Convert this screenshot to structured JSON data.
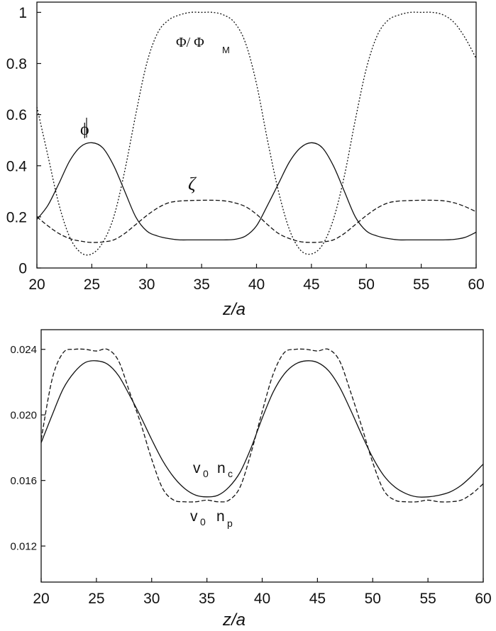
{
  "chart_data": [
    {
      "type": "line",
      "title": "",
      "xlabel": "z/a",
      "ylabel": "",
      "xlim": [
        20,
        60
      ],
      "ylim": [
        0,
        1.04
      ],
      "x_ticks": [
        "20",
        "25",
        "30",
        "35",
        "40",
        "45",
        "50",
        "55",
        "60"
      ],
      "y_ticks": [
        "0",
        "0.2",
        "0.4",
        "0.6",
        "0.8",
        "1"
      ],
      "grid": false,
      "annotations": {
        "phi": "ϕ",
        "zeta": "ζ",
        "Phi_main": "Φ/ Φ",
        "Phi_sub": "M"
      },
      "series": [
        {
          "name": "ϕ",
          "style": "solid",
          "x": [
            20,
            21,
            22,
            23,
            24,
            25,
            26,
            27,
            28,
            29,
            30,
            31,
            32,
            33,
            34,
            35,
            36,
            37,
            38,
            39,
            40,
            41,
            42,
            43,
            44,
            45,
            46,
            47,
            48,
            49,
            50,
            51,
            52,
            53,
            54,
            55,
            56,
            57,
            58,
            59,
            60
          ],
          "values": [
            0.19,
            0.245,
            0.33,
            0.42,
            0.475,
            0.49,
            0.47,
            0.4,
            0.3,
            0.2,
            0.145,
            0.125,
            0.115,
            0.11,
            0.11,
            0.11,
            0.11,
            0.11,
            0.112,
            0.125,
            0.165,
            0.245,
            0.33,
            0.415,
            0.47,
            0.49,
            0.47,
            0.4,
            0.3,
            0.2,
            0.145,
            0.125,
            0.115,
            0.11,
            0.11,
            0.11,
            0.11,
            0.11,
            0.112,
            0.12,
            0.14
          ]
        },
        {
          "name": "ζ",
          "style": "dashed",
          "x": [
            20,
            21,
            22,
            23,
            24,
            25,
            26,
            27,
            28,
            29,
            30,
            31,
            32,
            33,
            34,
            35,
            36,
            37,
            38,
            39,
            40,
            41,
            42,
            43,
            44,
            45,
            46,
            47,
            48,
            49,
            50,
            51,
            52,
            53,
            54,
            55,
            56,
            57,
            58,
            59,
            60
          ],
          "values": [
            0.2,
            0.165,
            0.135,
            0.115,
            0.105,
            0.1,
            0.102,
            0.11,
            0.135,
            0.17,
            0.205,
            0.235,
            0.255,
            0.262,
            0.264,
            0.265,
            0.265,
            0.263,
            0.255,
            0.24,
            0.21,
            0.17,
            0.135,
            0.115,
            0.103,
            0.1,
            0.102,
            0.11,
            0.135,
            0.17,
            0.205,
            0.235,
            0.255,
            0.262,
            0.264,
            0.265,
            0.265,
            0.263,
            0.255,
            0.24,
            0.22
          ]
        },
        {
          "name": "Φ/ ΦM",
          "style": "dotted",
          "x": [
            20,
            21,
            22,
            23,
            24,
            25,
            26,
            27,
            28,
            29,
            30,
            31,
            32,
            33,
            34,
            35,
            36,
            37,
            38,
            39,
            40,
            41,
            42,
            43,
            44,
            45,
            46,
            47,
            48,
            49,
            50,
            51,
            52,
            53,
            54,
            55,
            56,
            57,
            58,
            59,
            60
          ],
          "values": [
            0.63,
            0.44,
            0.25,
            0.12,
            0.06,
            0.055,
            0.1,
            0.2,
            0.38,
            0.6,
            0.8,
            0.92,
            0.97,
            0.99,
            1.0,
            1.0,
            1.0,
            0.99,
            0.96,
            0.88,
            0.72,
            0.5,
            0.3,
            0.15,
            0.07,
            0.055,
            0.09,
            0.19,
            0.36,
            0.58,
            0.78,
            0.91,
            0.97,
            0.99,
            1.0,
            1.0,
            1.0,
            0.99,
            0.96,
            0.9,
            0.82
          ]
        }
      ]
    },
    {
      "type": "line",
      "title": "",
      "xlabel": "z/a",
      "ylabel": "",
      "xlim": [
        20,
        60
      ],
      "ylim": [
        0.0098,
        0.0252
      ],
      "x_ticks": [
        "20",
        "25",
        "30",
        "35",
        "40",
        "45",
        "50",
        "55",
        "60"
      ],
      "y_ticks": [
        "0.012",
        "0.016",
        "0.020",
        "0.024"
      ],
      "grid": false,
      "annotations": {
        "nc_main": "v",
        "nc_sub0": "0",
        "nc_n": "n",
        "nc_sub": "c",
        "np_main": "v",
        "np_sub0": "0",
        "np_n": "n",
        "np_sub": "p"
      },
      "series": [
        {
          "name": "v0 nc",
          "style": "solid",
          "x": [
            20,
            21,
            22,
            23,
            24,
            25,
            26,
            27,
            28,
            29,
            30,
            31,
            32,
            33,
            34,
            35,
            36,
            37,
            38,
            39,
            40,
            41,
            42,
            43,
            44,
            45,
            46,
            47,
            48,
            49,
            50,
            51,
            52,
            53,
            54,
            55,
            56,
            57,
            58,
            59,
            60
          ],
          "values": [
            0.0183,
            0.02,
            0.0216,
            0.0226,
            0.0232,
            0.0233,
            0.0231,
            0.0224,
            0.0212,
            0.0199,
            0.0185,
            0.0172,
            0.0162,
            0.0155,
            0.0151,
            0.015,
            0.0151,
            0.0156,
            0.0165,
            0.018,
            0.0198,
            0.0214,
            0.0225,
            0.0231,
            0.0233,
            0.0232,
            0.0227,
            0.0217,
            0.0203,
            0.0188,
            0.0174,
            0.0163,
            0.0156,
            0.0152,
            0.015,
            0.015,
            0.0151,
            0.0153,
            0.0157,
            0.0163,
            0.017
          ]
        },
        {
          "name": "v0 np",
          "style": "dashed",
          "x": [
            20,
            21,
            22,
            23,
            24,
            25,
            26,
            27,
            28,
            29,
            30,
            31,
            32,
            33,
            34,
            35,
            36,
            37,
            38,
            39,
            40,
            41,
            42,
            43,
            44,
            45,
            46,
            47,
            48,
            49,
            50,
            51,
            52,
            53,
            54,
            55,
            56,
            57,
            58,
            59,
            60
          ],
          "values": [
            0.0185,
            0.0222,
            0.0238,
            0.024,
            0.024,
            0.0239,
            0.024,
            0.0233,
            0.0214,
            0.0195,
            0.0173,
            0.0155,
            0.0148,
            0.0147,
            0.0147,
            0.0148,
            0.0147,
            0.0148,
            0.0156,
            0.0177,
            0.0202,
            0.0225,
            0.0238,
            0.024,
            0.024,
            0.0239,
            0.024,
            0.0233,
            0.0214,
            0.0193,
            0.0171,
            0.0154,
            0.0148,
            0.0147,
            0.0147,
            0.0148,
            0.0147,
            0.0147,
            0.0148,
            0.0152,
            0.0158
          ]
        }
      ]
    }
  ]
}
